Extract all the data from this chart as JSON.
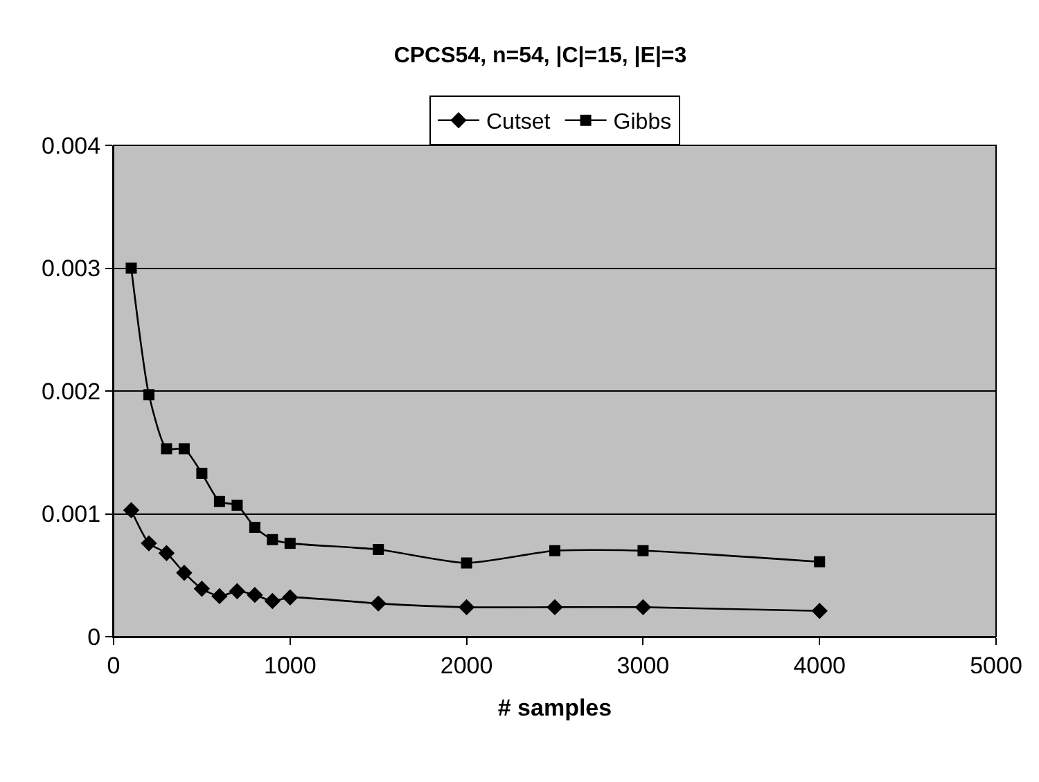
{
  "chart_data": {
    "type": "line",
    "title": "CPCS54, n=54, |C|=15, |E|=3",
    "xlabel": "# samples",
    "x": [
      100,
      200,
      300,
      400,
      500,
      600,
      700,
      800,
      900,
      1000,
      1500,
      2000,
      2500,
      3000,
      4000
    ],
    "series": [
      {
        "name": "Cutset",
        "color": "#000000",
        "marker": "diamond",
        "values": [
          0.00103,
          0.00076,
          0.00068,
          0.00052,
          0.00039,
          0.00033,
          0.00037,
          0.00034,
          0.00029,
          0.00032,
          0.00027,
          0.00024,
          0.00024,
          0.00024,
          0.00021
        ]
      },
      {
        "name": "Gibbs",
        "color": "#000000",
        "marker": "square",
        "values": [
          0.003,
          0.00197,
          0.00153,
          0.00153,
          0.00133,
          0.0011,
          0.00107,
          0.00089,
          0.00079,
          0.00076,
          0.00071,
          0.0006,
          0.0007,
          0.0007,
          0.00061
        ]
      }
    ],
    "xlim": [
      0,
      5000
    ],
    "xticks": [
      0,
      1000,
      2000,
      3000,
      4000,
      5000
    ],
    "ylim": [
      0,
      0.004
    ],
    "yticks": [
      0,
      0.001,
      0.002,
      0.003,
      0.004
    ],
    "grid": "y",
    "legend": "top",
    "line_style": "solid"
  }
}
